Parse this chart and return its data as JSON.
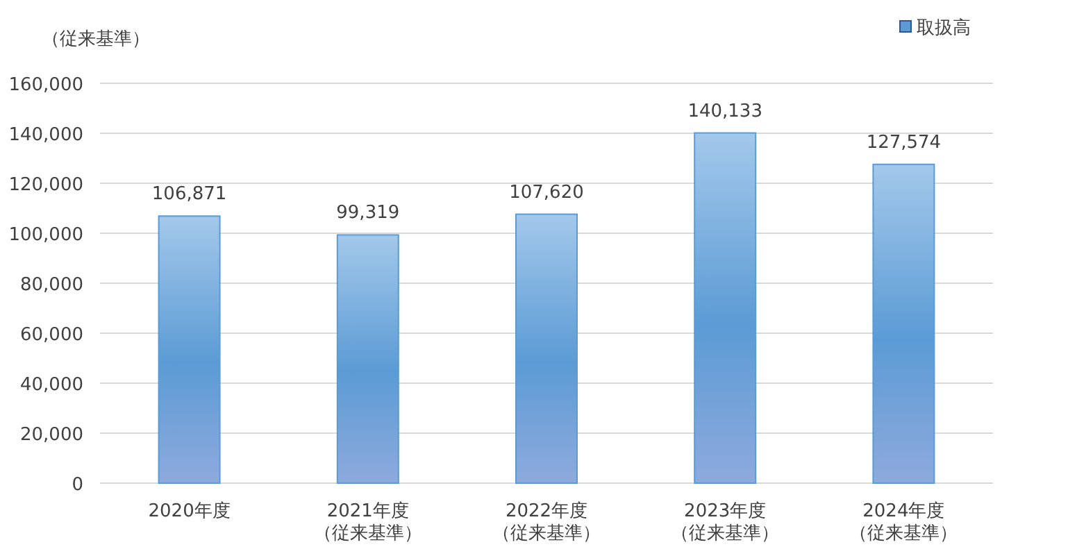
{
  "chart_data": {
    "type": "bar",
    "ylabel": "（従来基準）",
    "categories": [
      "2020年度",
      "2021年度（従来基準）",
      "2022年度（従来基準）",
      "2023年度（従来基準）",
      "2024年度（従来基準）"
    ],
    "series": [
      {
        "name": "取扱高",
        "color": "#5b9bd5",
        "values": [
          106871,
          99319,
          107620,
          140133,
          127574
        ],
        "value_labels": [
          "106,871",
          "99,319",
          "107,620",
          "140,133",
          "127,574"
        ]
      }
    ],
    "ylim": [
      0,
      160000
    ],
    "yticks": [
      {
        "value": 0,
        "label": "0"
      },
      {
        "value": 20000,
        "label": "20,000"
      },
      {
        "value": 40000,
        "label": "40,000"
      },
      {
        "value": 60000,
        "label": "60,000"
      },
      {
        "value": 80000,
        "label": "80,000"
      },
      {
        "value": 100000,
        "label": "100,000"
      },
      {
        "value": 120000,
        "label": "120,000"
      },
      {
        "value": 140000,
        "label": "140,000"
      },
      {
        "value": 160000,
        "label": "160,000"
      }
    ],
    "grid": "y",
    "legend": "top right"
  }
}
